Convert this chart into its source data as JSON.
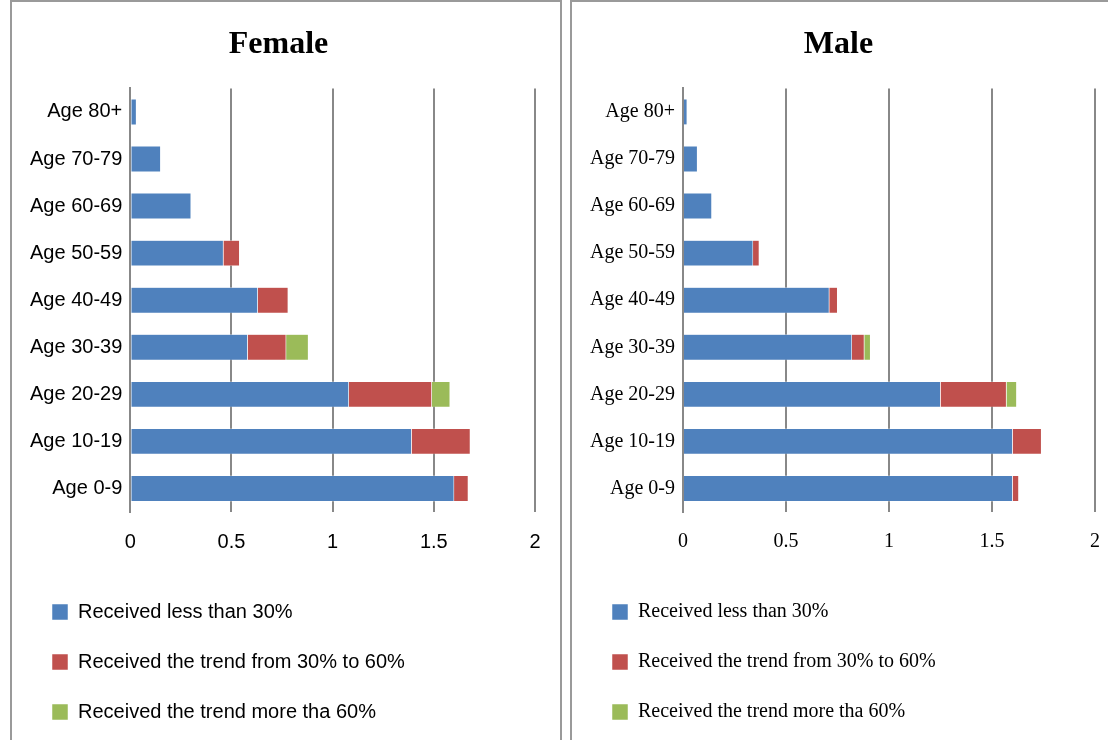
{
  "chart_data": [
    {
      "type": "bar",
      "title": "Female",
      "orientation": "horizontal",
      "stacked": true,
      "grid": "x",
      "legend": "bottom",
      "categories": [
        "Age 80+",
        "Age 70-79",
        "Age 60-69",
        "Age 50-59",
        "Age 40-49",
        "Age 30-39",
        "Age 20-29",
        "Age 10-19",
        "Age 0-9"
      ],
      "xlim": [
        0,
        2
      ],
      "xticks": [
        0,
        0.5,
        1,
        1.5,
        2
      ],
      "series": [
        {
          "name": "Received less than 30%",
          "color": "#4f81bd",
          "values": [
            0.03,
            0.15,
            0.3,
            0.46,
            0.63,
            0.58,
            1.08,
            1.39,
            1.6
          ]
        },
        {
          "name": "Received the trend from 30% to 60%",
          "color": "#c0504d",
          "values": [
            null,
            null,
            null,
            0.08,
            0.15,
            0.19,
            0.41,
            0.29,
            0.07
          ]
        },
        {
          "name": "Received the trend more tha 60%",
          "color": "#9bbb59",
          "values": [
            null,
            null,
            null,
            null,
            null,
            0.11,
            0.09,
            null,
            null
          ]
        }
      ]
    },
    {
      "type": "bar",
      "title": "Male",
      "orientation": "horizontal",
      "stacked": true,
      "grid": "x",
      "legend": "bottom",
      "categories": [
        "Age 80+",
        "Age 70-79",
        "Age 60-69",
        "Age 50-59",
        "Age 40-49",
        "Age 30-39",
        "Age 20-29",
        "Age 10-19",
        "Age 0-9"
      ],
      "xlim": [
        0,
        2
      ],
      "xticks": [
        0,
        0.5,
        1,
        1.5,
        2
      ],
      "series": [
        {
          "name": "Received less than 30%",
          "color": "#4f81bd",
          "values": [
            0.02,
            0.07,
            0.14,
            0.34,
            0.71,
            0.82,
            1.25,
            1.6,
            1.6
          ]
        },
        {
          "name": "Received the trend from 30% to 60%",
          "color": "#c0504d",
          "values": [
            null,
            null,
            null,
            0.03,
            0.04,
            0.06,
            0.32,
            0.14,
            0.03
          ]
        },
        {
          "name": "Received the trend more tha 60%",
          "color": "#9bbb59",
          "values": [
            null,
            null,
            null,
            null,
            null,
            0.03,
            0.05,
            null,
            null
          ]
        }
      ]
    }
  ]
}
